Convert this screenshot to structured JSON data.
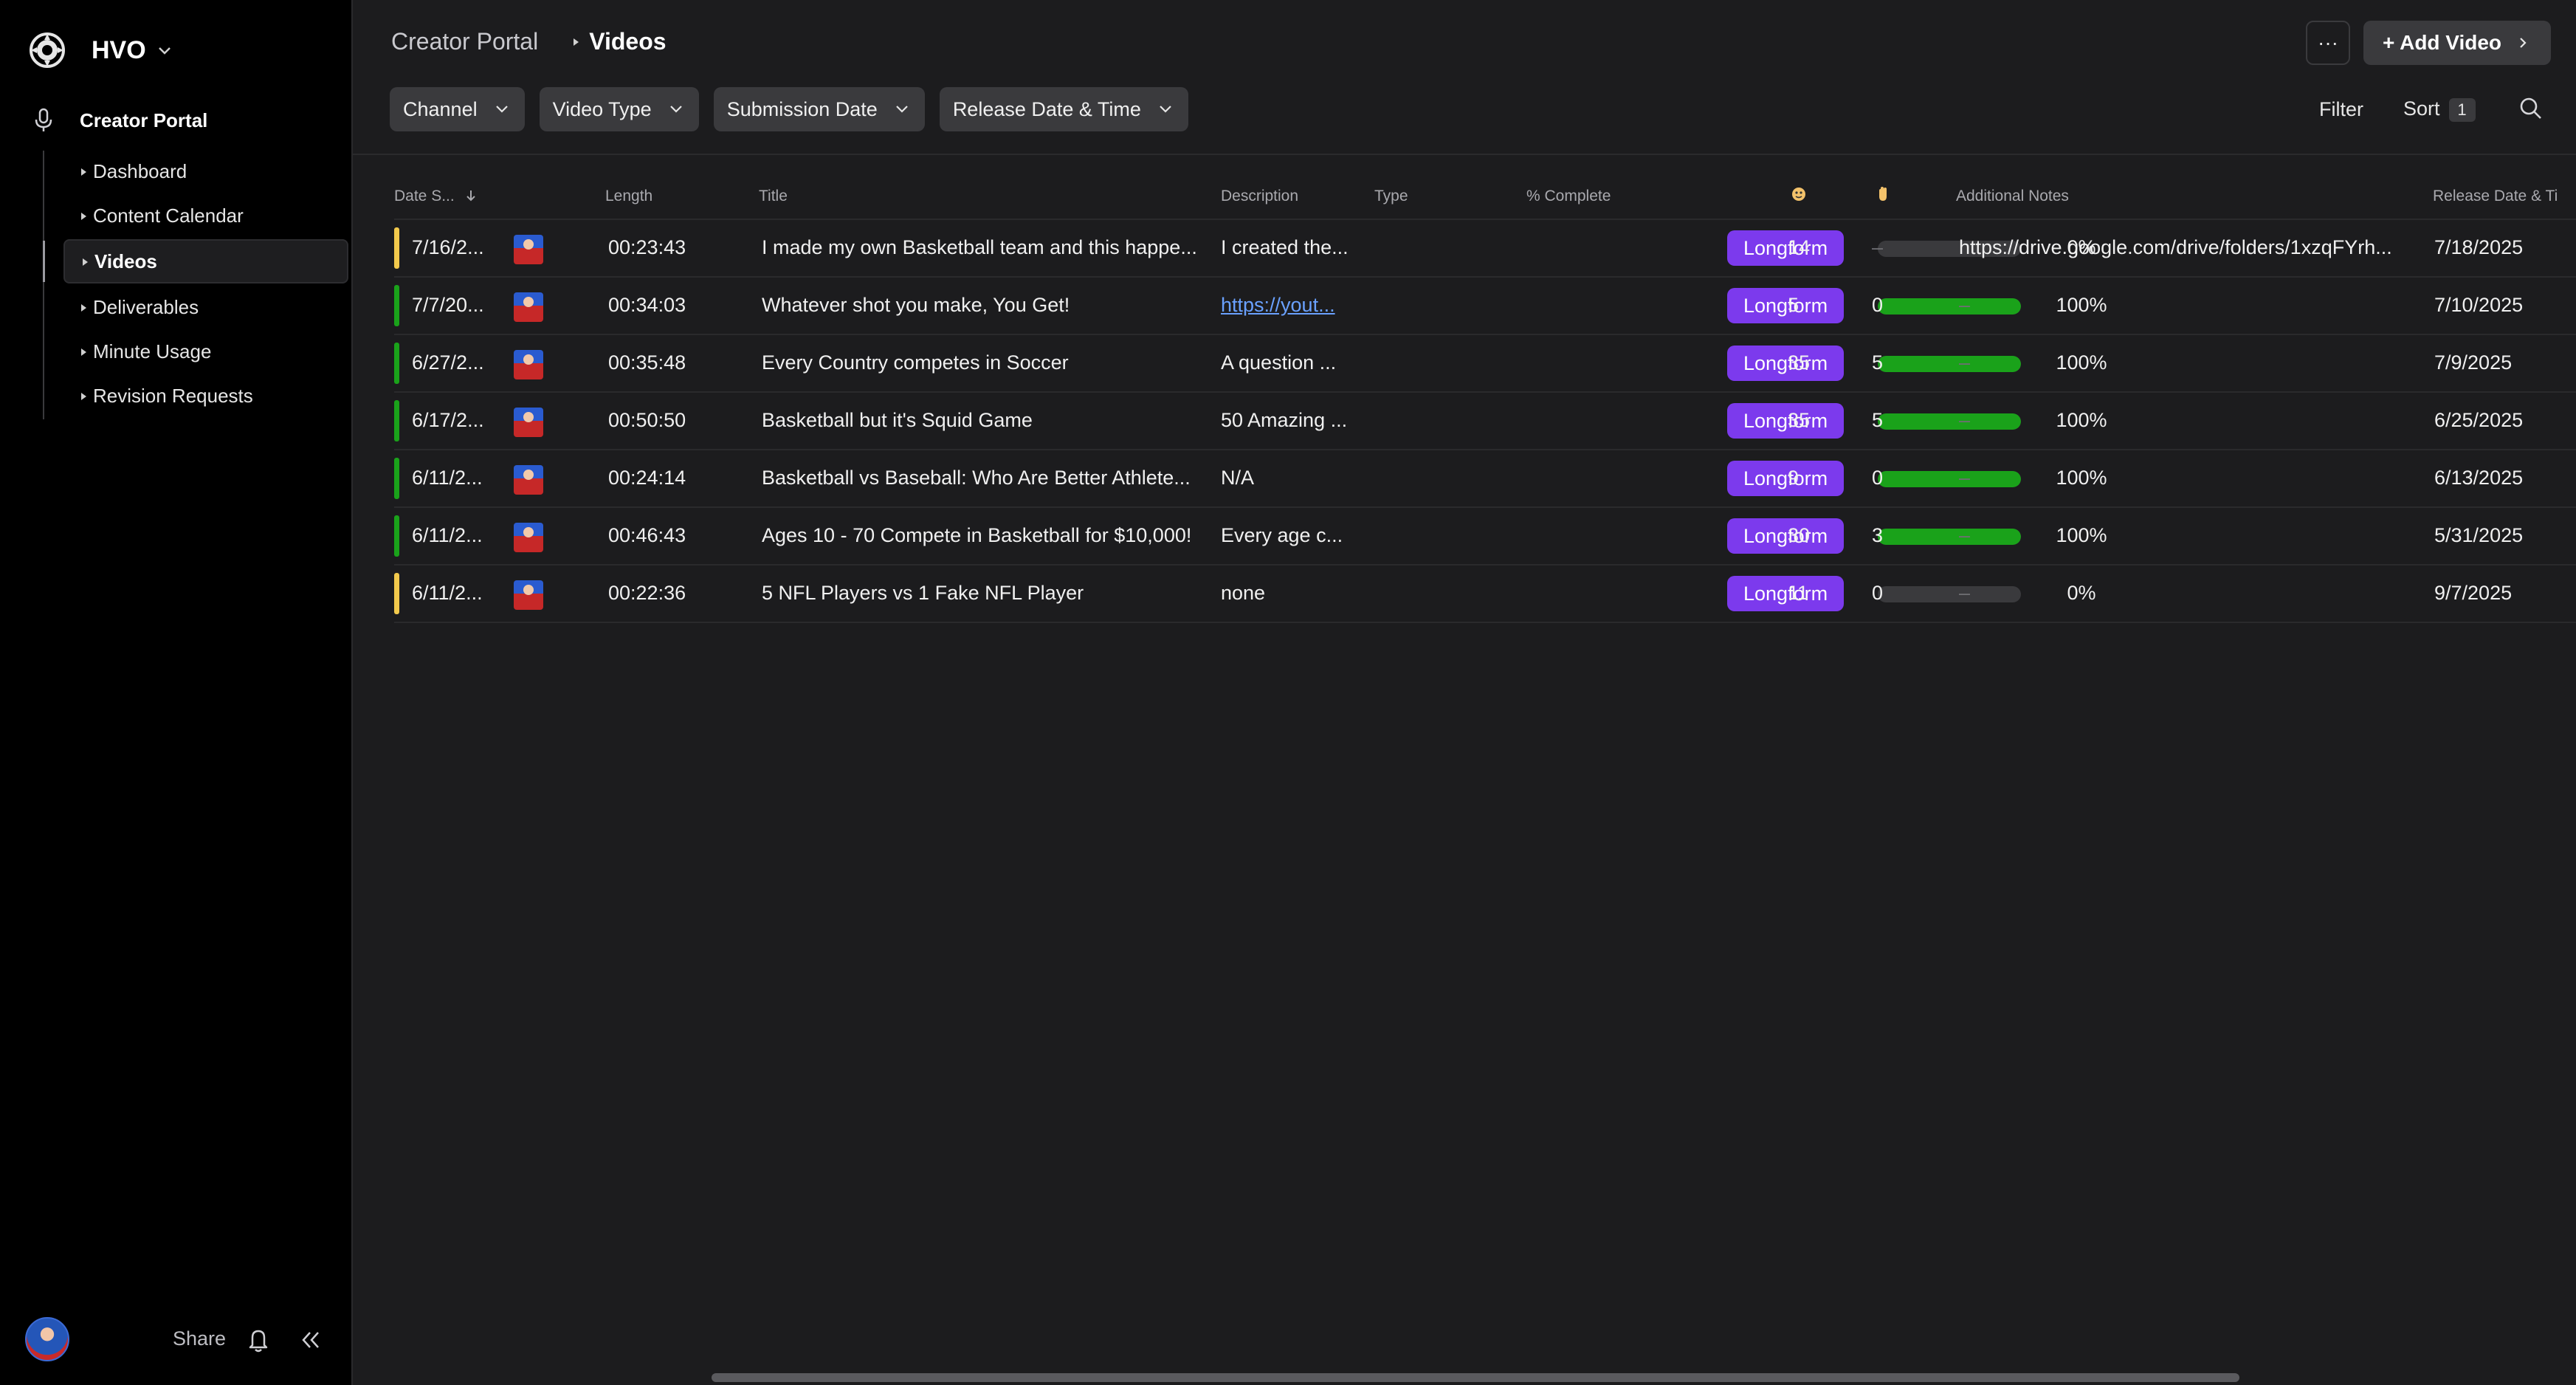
{
  "workspace": {
    "name": "HVO"
  },
  "sidebar": {
    "section_label": "Creator Portal",
    "items": [
      {
        "label": "Dashboard",
        "active": false
      },
      {
        "label": "Content Calendar",
        "active": false
      },
      {
        "label": "Videos",
        "active": true
      },
      {
        "label": "Deliverables",
        "active": false
      },
      {
        "label": "Minute Usage",
        "active": false
      },
      {
        "label": "Revision Requests",
        "active": false
      }
    ],
    "footer": {
      "share_label": "Share"
    }
  },
  "header": {
    "breadcrumb": [
      "Creator Portal",
      "Videos"
    ],
    "more_label": "···",
    "add_label": "+ Add Video"
  },
  "filters": [
    "Channel",
    "Video Type",
    "Submission Date",
    "Release Date & Time"
  ],
  "toolbar": {
    "filter_label": "Filter",
    "sort_label": "Sort",
    "sort_count": "1"
  },
  "table": {
    "columns": {
      "date": "Date S...",
      "length": "Length",
      "title": "Title",
      "description": "Description",
      "type": "Type",
      "complete": "% Complete",
      "additional_notes": "Additional Notes",
      "release": "Release Date & Ti"
    },
    "rows": [
      {
        "status_color": "#f2c94c",
        "date": "7/16/2...",
        "length": "00:23:43",
        "title": "I made my own Basketball team and this happe...",
        "description": "I created the...",
        "description_is_link": false,
        "type": "Longform",
        "complete_label": "0%",
        "complete": 0,
        "c1": "14",
        "c2": "–",
        "notes": "https://drive.google.com/drive/folders/1xzqFYrh...",
        "release": "7/18/2025"
      },
      {
        "status_color": "#1aa21a",
        "date": "7/7/20...",
        "length": "00:34:03",
        "title": "Whatever shot you make, You Get!",
        "description": "https://yout...",
        "description_is_link": true,
        "type": "Longform",
        "complete_label": "100%",
        "complete": 100,
        "c1": "5",
        "c2": "0",
        "notes": "–",
        "release": "7/10/2025"
      },
      {
        "status_color": "#1aa21a",
        "date": "6/27/2...",
        "length": "00:35:48",
        "title": "Every Country competes in Soccer",
        "description": "A question ...",
        "description_is_link": false,
        "type": "Longform",
        "complete_label": "100%",
        "complete": 100,
        "c1": "35",
        "c2": "5",
        "notes": "–",
        "release": "7/9/2025"
      },
      {
        "status_color": "#1aa21a",
        "date": "6/17/2...",
        "length": "00:50:50",
        "title": "Basketball but it's Squid Game",
        "description": "50 Amazing ...",
        "description_is_link": false,
        "type": "Longform",
        "complete_label": "100%",
        "complete": 100,
        "c1": "35",
        "c2": "5",
        "notes": "–",
        "release": "6/25/2025"
      },
      {
        "status_color": "#1aa21a",
        "date": "6/11/2...",
        "length": "00:24:14",
        "title": "Basketball vs Baseball: Who Are Better Athlete...",
        "description": "N/A",
        "description_is_link": false,
        "type": "Longform",
        "complete_label": "100%",
        "complete": 100,
        "c1": "9",
        "c2": "0",
        "notes": "–",
        "release": "6/13/2025"
      },
      {
        "status_color": "#1aa21a",
        "date": "6/11/2...",
        "length": "00:46:43",
        "title": "Ages 10 - 70 Compete in Basketball for $10,000!",
        "description": "Every age c...",
        "description_is_link": false,
        "type": "Longform",
        "complete_label": "100%",
        "complete": 100,
        "c1": "30",
        "c2": "3",
        "notes": "–",
        "release": "5/31/2025"
      },
      {
        "status_color": "#f2c94c",
        "date": "6/11/2...",
        "length": "00:22:36",
        "title": "5 NFL Players vs 1 Fake NFL Player",
        "description": "none",
        "description_is_link": false,
        "type": "Longform",
        "complete_label": "0%",
        "complete": 0,
        "c1": "11",
        "c2": "0",
        "notes": "–",
        "release": "9/7/2025"
      }
    ]
  },
  "colors": {
    "accent_pill": "#7c3aed",
    "progress": "#1aa21a",
    "status_pending": "#f2c94c",
    "status_done": "#1aa21a"
  }
}
